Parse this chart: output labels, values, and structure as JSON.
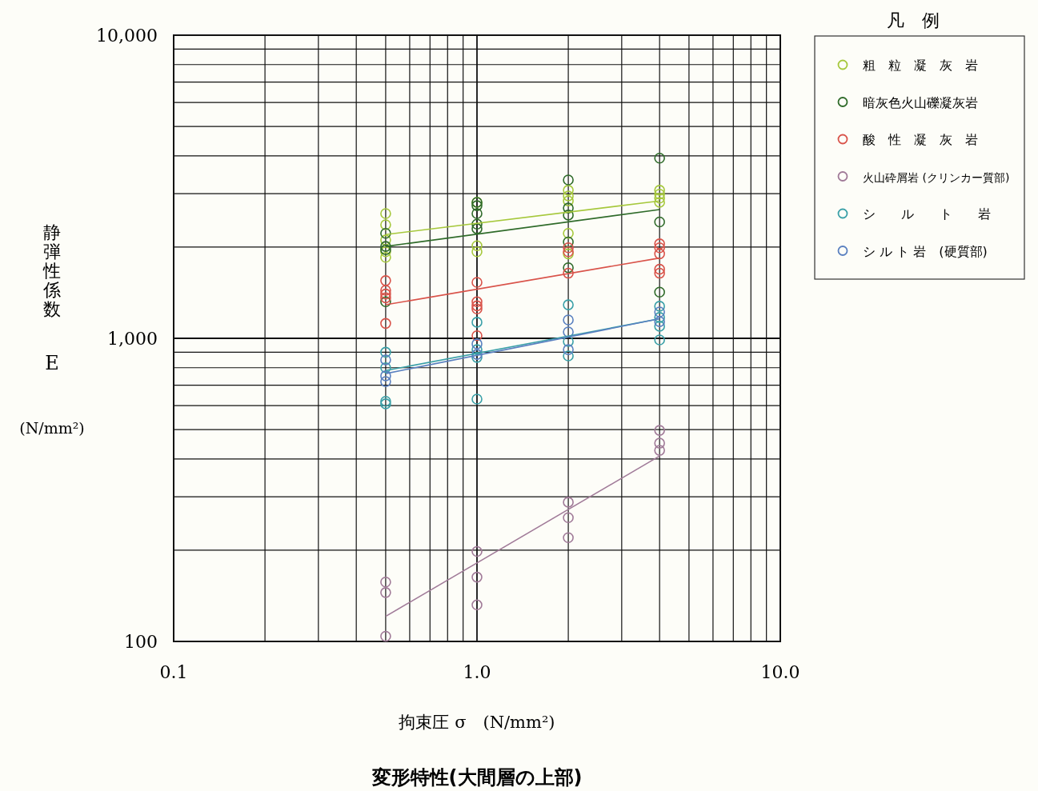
{
  "chart_data": {
    "type": "scatter",
    "title": "変形特性(大間層の上部)",
    "xlabel": "拘束圧 σ　(N/mm²)",
    "ylabel": "静弾性係数 E (N/mm²)",
    "legend_title": "凡　例",
    "log": "xy",
    "grid": true,
    "legend": "right",
    "marker": "circle",
    "xlim": [
      0.1,
      10
    ],
    "ylim": [
      100,
      10000
    ],
    "xticks": [
      {
        "value": 0.1,
        "label": "0.1"
      },
      {
        "value": 0.2,
        "label": null
      },
      {
        "value": 0.3,
        "label": null
      },
      {
        "value": 0.4,
        "label": null
      },
      {
        "value": 0.5,
        "label": null
      },
      {
        "value": 0.6,
        "label": null
      },
      {
        "value": 0.7,
        "label": null
      },
      {
        "value": 0.8,
        "label": null
      },
      {
        "value": 0.9,
        "label": null
      },
      {
        "value": 1,
        "label": "1.0"
      },
      {
        "value": 2,
        "label": null
      },
      {
        "value": 3,
        "label": null
      },
      {
        "value": 4,
        "label": null
      },
      {
        "value": 5,
        "label": null
      },
      {
        "value": 6,
        "label": null
      },
      {
        "value": 7,
        "label": null
      },
      {
        "value": 8,
        "label": null
      },
      {
        "value": 9,
        "label": null
      },
      {
        "value": 10,
        "label": "10.0"
      }
    ],
    "yticks": [
      100,
      {
        "value": 200,
        "label": null
      },
      {
        "value": 300,
        "label": null
      },
      {
        "value": 400,
        "label": null
      },
      {
        "value": 500,
        "label": null
      },
      {
        "value": 600,
        "label": null
      },
      {
        "value": 700,
        "label": null
      },
      {
        "value": 800,
        "label": null
      },
      {
        "value": 900,
        "label": null
      },
      {
        "value": 1000,
        "label": "1,000"
      },
      {
        "value": 2000,
        "label": null
      },
      {
        "value": 3000,
        "label": null
      },
      {
        "value": 4000,
        "label": null
      },
      {
        "value": 5000,
        "label": null
      },
      {
        "value": 6000,
        "label": null
      },
      {
        "value": 7000,
        "label": null
      },
      {
        "value": 8000,
        "label": null
      },
      {
        "value": 9000,
        "label": null
      },
      {
        "value": 10000,
        "label": "10,000"
      }
    ],
    "series": [
      {
        "name": "粗　粒　凝　灰　岩",
        "color": "#a6c83c",
        "x": [
          0.5,
          0.5,
          0.5,
          0.5,
          0.5,
          1,
          1,
          1,
          2,
          2,
          2,
          2,
          2,
          4,
          4,
          4,
          4
        ],
        "values": [
          2580,
          2370,
          2110,
          1930,
          1850,
          2810,
          2020,
          1930,
          3080,
          2950,
          2840,
          2220,
          1900,
          3080,
          2990,
          2900,
          2810
        ]
      },
      {
        "name": "暗灰色火山礫凝灰岩",
        "color": "#2f6b2a",
        "x": [
          0.5,
          0.5,
          0.5,
          0.5,
          1,
          1,
          1,
          1,
          1,
          2,
          2,
          2,
          2,
          2,
          4,
          4,
          4
        ],
        "values": [
          2220,
          2010,
          1960,
          1320,
          2810,
          2740,
          2580,
          2380,
          2300,
          3330,
          2690,
          2550,
          2080,
          1710,
          3930,
          2420,
          1420
        ]
      },
      {
        "name": "酸　性　凝　灰　岩",
        "color": "#d9534a",
        "x": [
          0.5,
          0.5,
          0.5,
          0.5,
          0.5,
          1,
          1,
          1,
          1,
          1,
          2,
          2,
          2,
          4,
          4,
          4,
          4,
          4
        ],
        "values": [
          1550,
          1440,
          1400,
          1360,
          1120,
          1530,
          1320,
          1280,
          1250,
          1020,
          1990,
          1930,
          1640,
          2050,
          1990,
          1900,
          1690,
          1640
        ]
      },
      {
        "name": "火山砕屑岩 (クリンカー質部)",
        "color": "#a07a98",
        "x": [
          0.5,
          0.5,
          0.5,
          1,
          1,
          1,
          2,
          2,
          2,
          4,
          4,
          4
        ],
        "values": [
          157,
          145,
          104,
          198,
          163,
          132,
          288,
          256,
          220,
          497,
          451,
          427
        ]
      },
      {
        "name": "シ　　ル　　ト　　岩",
        "color": "#3aa0a8",
        "x": [
          0.5,
          0.5,
          0.5,
          0.5,
          1,
          1,
          1,
          1,
          2,
          2,
          2,
          4,
          4,
          4,
          4
        ],
        "values": [
          900,
          800,
          620,
          608,
          1130,
          918,
          865,
          630,
          1290,
          976,
          875,
          1276,
          1172,
          1096,
          988
        ]
      },
      {
        "name": "シ ル ト 岩　(硬質部)",
        "color": "#5a80c0",
        "x": [
          0.5,
          0.5,
          0.5,
          1,
          1,
          2,
          2,
          2,
          4,
          4
        ],
        "values": [
          849,
          752,
          720,
          959,
          885,
          1150,
          1050,
          918,
          1222,
          1135
        ]
      },
      {
        "type": "line",
        "marker": "none",
        "color": "#a6c83c",
        "x": [
          0.5,
          4
        ],
        "values": [
          2200,
          2840
        ]
      },
      {
        "type": "line",
        "marker": "none",
        "color": "#2f6b2a",
        "x": [
          0.5,
          4
        ],
        "values": [
          2010,
          2660
        ]
      },
      {
        "type": "line",
        "marker": "none",
        "color": "#d9534a",
        "x": [
          0.5,
          4
        ],
        "values": [
          1290,
          1840
        ]
      },
      {
        "type": "line",
        "marker": "none",
        "color": "#a07a98",
        "x": [
          0.5,
          4
        ],
        "values": [
          121,
          409
        ]
      },
      {
        "type": "line",
        "marker": "none",
        "color": "#3aa0a8",
        "x": [
          0.5,
          4
        ],
        "values": [
          783,
          1160
        ]
      },
      {
        "type": "line",
        "marker": "none",
        "color": "#5a80c0",
        "x": [
          0.5,
          4
        ],
        "values": [
          765,
          1160
        ]
      }
    ]
  }
}
